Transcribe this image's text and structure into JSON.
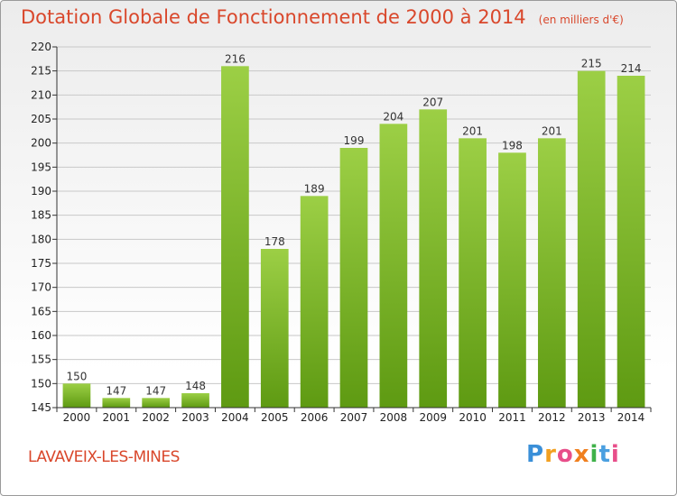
{
  "header": {
    "title": "Dotation Globale de Fonctionnement de 2000 à 2014",
    "unit": "(en milliers d'€)"
  },
  "footer": {
    "commune": "LAVAVEIX-LES-MINES",
    "logo_letters": [
      "P",
      "r",
      "o",
      "x",
      "i",
      "t",
      "i"
    ],
    "logo_colors": [
      "#3a8fd8",
      "#f2a020",
      "#e84e8a",
      "#f07f1e",
      "#3fb24a",
      "#4a9fe0",
      "#e84e8a"
    ]
  },
  "colors": {
    "bar_light": "#9ccf45",
    "bar_dark": "#5e9a12",
    "grid": "#c8c8c8",
    "title": "#d9472b"
  },
  "chart_data": {
    "type": "bar",
    "title": "Dotation Globale de Fonctionnement de 2000 à 2014",
    "subtitle": "(en milliers d'€)",
    "xlabel": "",
    "ylabel": "",
    "categories": [
      "2000",
      "2001",
      "2002",
      "2003",
      "2004",
      "2005",
      "2006",
      "2007",
      "2008",
      "2009",
      "2010",
      "2011",
      "2012",
      "2013",
      "2014"
    ],
    "values": [
      150,
      147,
      147,
      148,
      216,
      178,
      189,
      199,
      204,
      207,
      201,
      198,
      201,
      215,
      214
    ],
    "ylim": [
      145,
      220
    ],
    "yticks": [
      145,
      150,
      155,
      160,
      165,
      170,
      175,
      180,
      185,
      190,
      195,
      200,
      205,
      210,
      215,
      220
    ],
    "grid": true,
    "legend": "none"
  }
}
